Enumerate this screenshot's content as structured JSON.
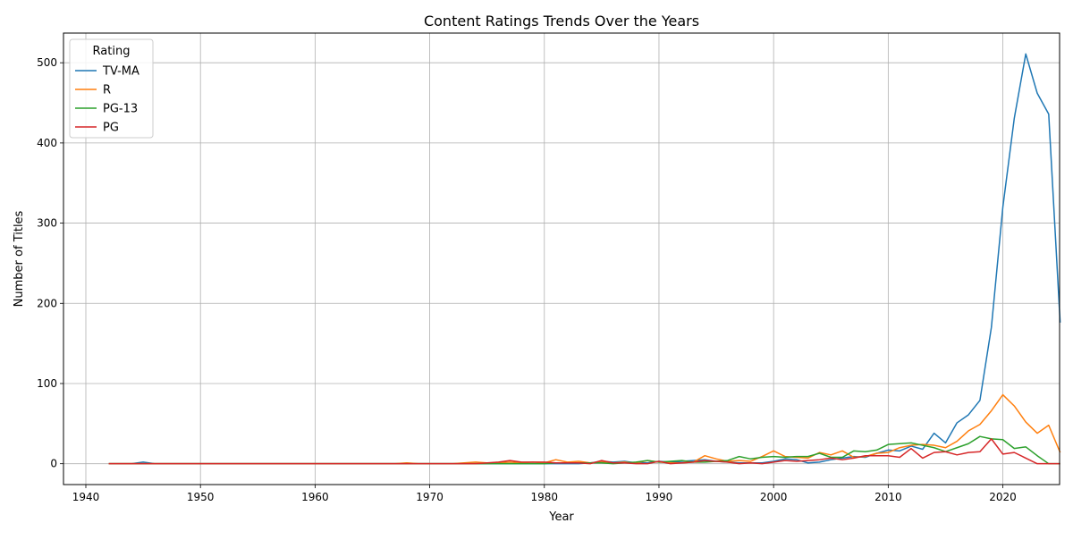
{
  "chart_data": {
    "type": "line",
    "title": "Content Ratings Trends Over the Years",
    "xlabel": "Year",
    "ylabel": "Number of Titles",
    "xlim": [
      1938.05,
      2024.95
    ],
    "ylim": [
      -26,
      537
    ],
    "xticks": [
      1940,
      1950,
      1960,
      1970,
      1980,
      1990,
      2000,
      2010,
      2020
    ],
    "yticks": [
      0,
      100,
      200,
      300,
      400,
      500
    ],
    "grid": true,
    "legend": {
      "title": "Rating",
      "placement": "top-left"
    },
    "x_start": 1942,
    "series": [
      {
        "name": "TV-MA",
        "color": "#1f77b4",
        "values": [
          0,
          0,
          0,
          2,
          0,
          0,
          0,
          0,
          0,
          0,
          0,
          0,
          0,
          0,
          0,
          0,
          0,
          0,
          0,
          0,
          0,
          0,
          0,
          0,
          0,
          0,
          0,
          0,
          0,
          0,
          0,
          0,
          0,
          0,
          0,
          0,
          0,
          0,
          0,
          0,
          0,
          0,
          1,
          3,
          2,
          3,
          1,
          1,
          3,
          2,
          3,
          4,
          5,
          3,
          2,
          1,
          1,
          1,
          3,
          6,
          5,
          1,
          2,
          5,
          7,
          9,
          8,
          13,
          17,
          16,
          22,
          18,
          38,
          26,
          51,
          61,
          79,
          170,
          320,
          431,
          511,
          462,
          436,
          176
        ]
      },
      {
        "name": "R",
        "color": "#ff7f0e",
        "values": [
          0,
          0,
          0,
          0,
          0,
          0,
          0,
          0,
          0,
          0,
          0,
          0,
          0,
          0,
          0,
          0,
          0,
          0,
          0,
          0,
          0,
          0,
          0,
          0,
          0,
          0,
          1,
          0,
          0,
          0,
          0,
          1,
          2,
          1,
          1,
          2,
          1,
          2,
          1,
          5,
          2,
          3,
          1,
          2,
          1,
          2,
          1,
          4,
          2,
          1,
          1,
          2,
          10,
          6,
          3,
          4,
          3,
          9,
          16,
          9,
          8,
          7,
          14,
          11,
          16,
          8,
          9,
          13,
          14,
          20,
          23,
          24,
          23,
          20,
          28,
          41,
          49,
          66,
          86,
          72,
          52,
          38,
          48,
          14
        ]
      },
      {
        "name": "PG-13",
        "color": "#2ca02c",
        "values": [
          0,
          0,
          0,
          0,
          0,
          0,
          0,
          0,
          0,
          0,
          0,
          0,
          0,
          0,
          0,
          0,
          0,
          0,
          0,
          0,
          0,
          0,
          0,
          0,
          0,
          0,
          0,
          0,
          0,
          0,
          0,
          0,
          0,
          0,
          0,
          0,
          0,
          0,
          0,
          1,
          1,
          1,
          1,
          1,
          0,
          1,
          2,
          4,
          2,
          3,
          4,
          2,
          2,
          3,
          4,
          9,
          6,
          8,
          9,
          8,
          9,
          9,
          13,
          8,
          8,
          16,
          15,
          17,
          24,
          25,
          26,
          23,
          20,
          15,
          20,
          25,
          34,
          31,
          30,
          19,
          21,
          10,
          0,
          0
        ]
      },
      {
        "name": "PG",
        "color": "#d62728",
        "values": [
          0,
          0,
          0,
          0,
          0,
          0,
          0,
          0,
          0,
          0,
          0,
          0,
          0,
          0,
          0,
          0,
          0,
          0,
          0,
          0,
          0,
          0,
          0,
          0,
          0,
          0,
          0,
          0,
          0,
          0,
          0,
          0,
          0,
          1,
          2,
          4,
          2,
          2,
          2,
          1,
          1,
          1,
          0,
          4,
          1,
          1,
          0,
          0,
          3,
          0,
          1,
          2,
          4,
          3,
          2,
          0,
          1,
          0,
          2,
          4,
          3,
          4,
          5,
          7,
          5,
          7,
          10,
          10,
          10,
          8,
          19,
          7,
          14,
          15,
          11,
          14,
          15,
          31,
          12,
          14,
          7,
          0,
          0,
          0
        ]
      }
    ]
  }
}
